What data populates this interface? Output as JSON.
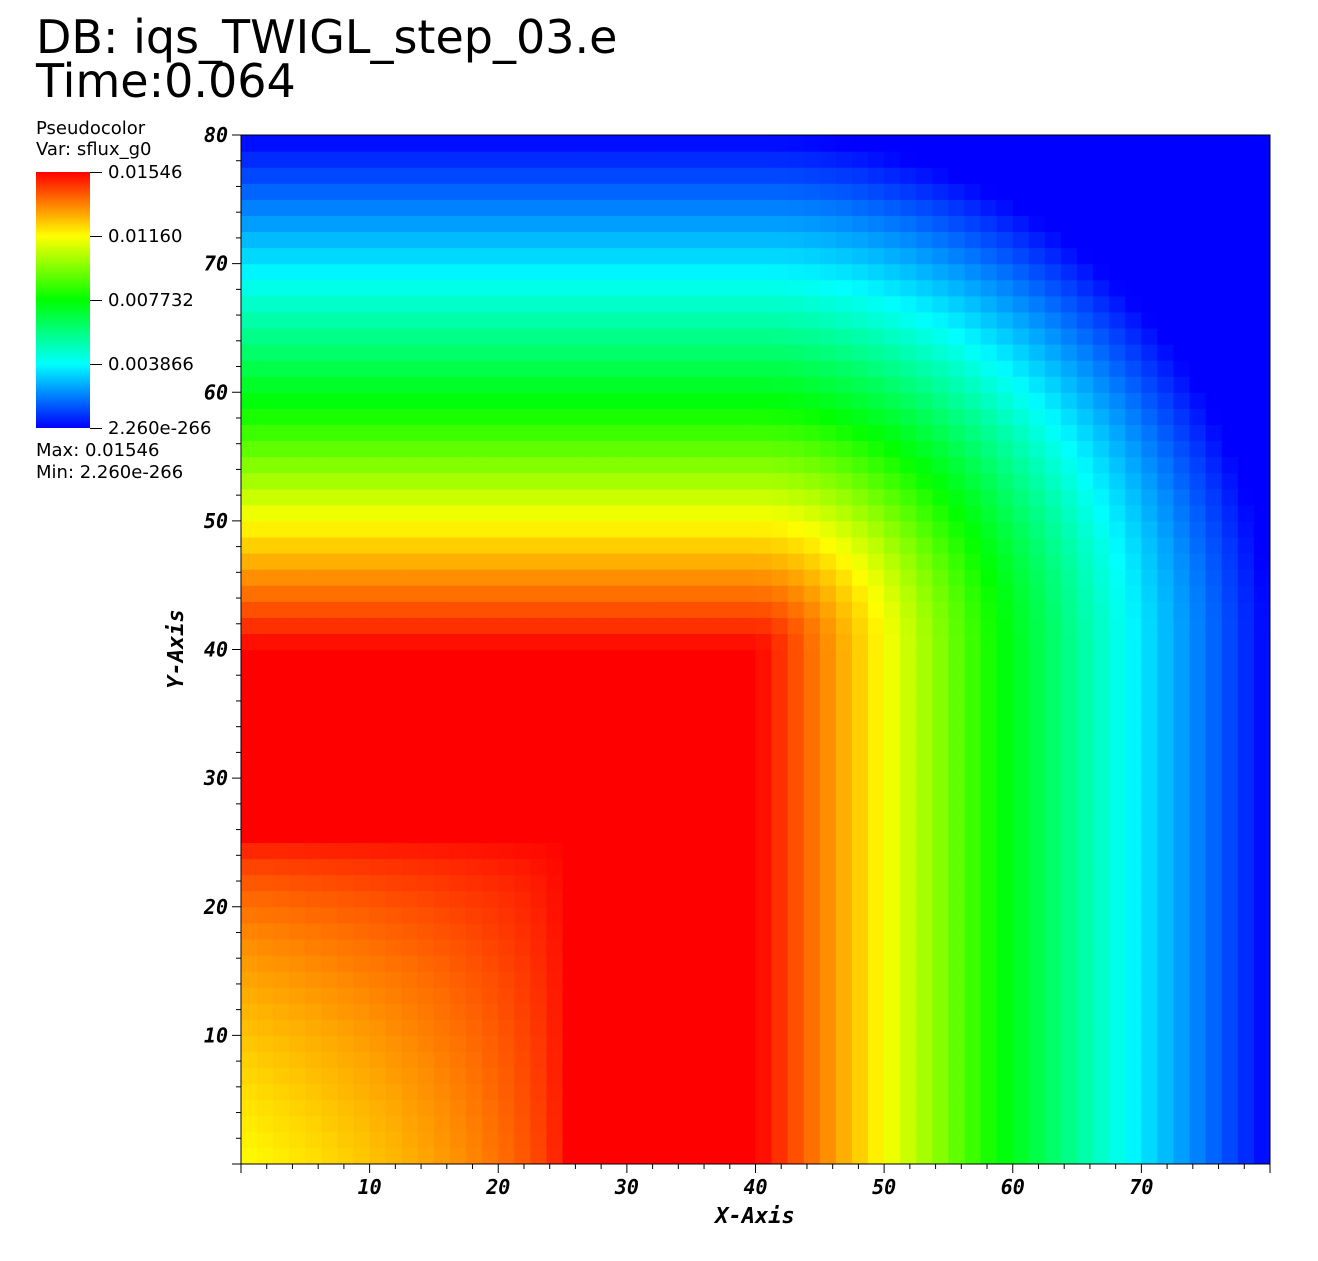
{
  "header": {
    "db": "DB: iqs_TWIGL_step_03.e",
    "time": "Time:0.064"
  },
  "legend": {
    "plot_type": "Pseudocolor",
    "variable": "Var: sflux_g0",
    "max_text": "Max:  0.01546",
    "min_text": "Min:  2.260e-266",
    "ticks": [
      "0.01546",
      "0.01160",
      "0.007732",
      "0.003866",
      "2.260e-266"
    ],
    "colors": [
      "#ff0000",
      "#ffff00",
      "#00ff00",
      "#00ffff",
      "#0000ff"
    ]
  },
  "chart_data": {
    "type": "heatmap",
    "xlabel": "X-Axis",
    "ylabel": "Y-Axis",
    "xlim": [
      0,
      80
    ],
    "ylim": [
      0,
      80
    ],
    "x_ticks": [
      10,
      20,
      30,
      40,
      50,
      60,
      70
    ],
    "y_ticks": [
      10,
      20,
      30,
      40,
      50,
      60,
      70,
      80
    ],
    "colormap": [
      "#0000ff",
      "#00ffff",
      "#00ff00",
      "#ffff00",
      "#ff0000"
    ],
    "value_range": [
      2.26e-266,
      0.01546
    ],
    "field_description": "Pseudocolor of sflux_g0: maximum (red) in the region x 25-40, y 0-40 and x 0-25, y 25-40; decreasing toward the outer boundaries x=80 and y=80 (blue)."
  }
}
